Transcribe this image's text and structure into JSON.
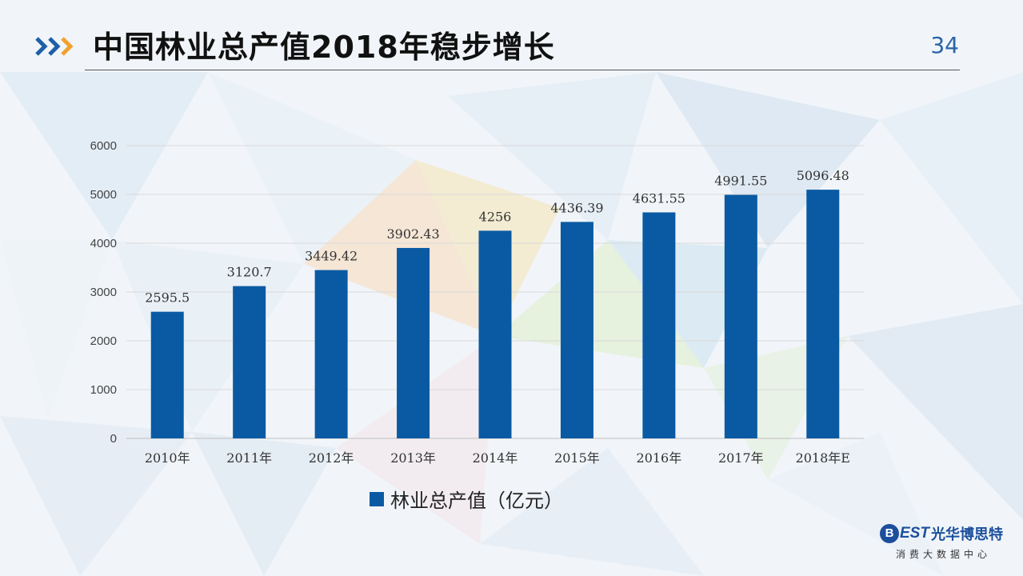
{
  "header": {
    "title": "中国林业总产值2018年稳步增长",
    "page_number": "34"
  },
  "colors": {
    "bar": "#0a5aa3",
    "accent_blue": "#1f5fa8",
    "accent_orange": "#f0a22e"
  },
  "chart_data": {
    "type": "bar",
    "categories": [
      "2010年",
      "2011年",
      "2012年",
      "2013年",
      "2014年",
      "2015年",
      "2016年",
      "2017年",
      "2018年E"
    ],
    "values": [
      2595.5,
      3120.7,
      3449.42,
      3902.43,
      4256,
      4436.39,
      4631.55,
      4991.55,
      5096.48
    ],
    "data_labels": [
      "2595.5",
      "3120.7",
      "3449.42",
      "3902.43",
      "4256",
      "4436.39",
      "4631.55",
      "4991.55",
      "5096.48"
    ],
    "series": [
      {
        "name": "林业总产值（亿元）"
      }
    ],
    "ylim": [
      0,
      6000
    ],
    "yticks": [
      0,
      1000,
      2000,
      3000,
      4000,
      5000,
      6000
    ],
    "grid": true,
    "legend_position": "bottom"
  },
  "logo": {
    "mark": "B",
    "est": "EST",
    "name": "光华博思特",
    "subtitle": "消费大数据中心"
  }
}
